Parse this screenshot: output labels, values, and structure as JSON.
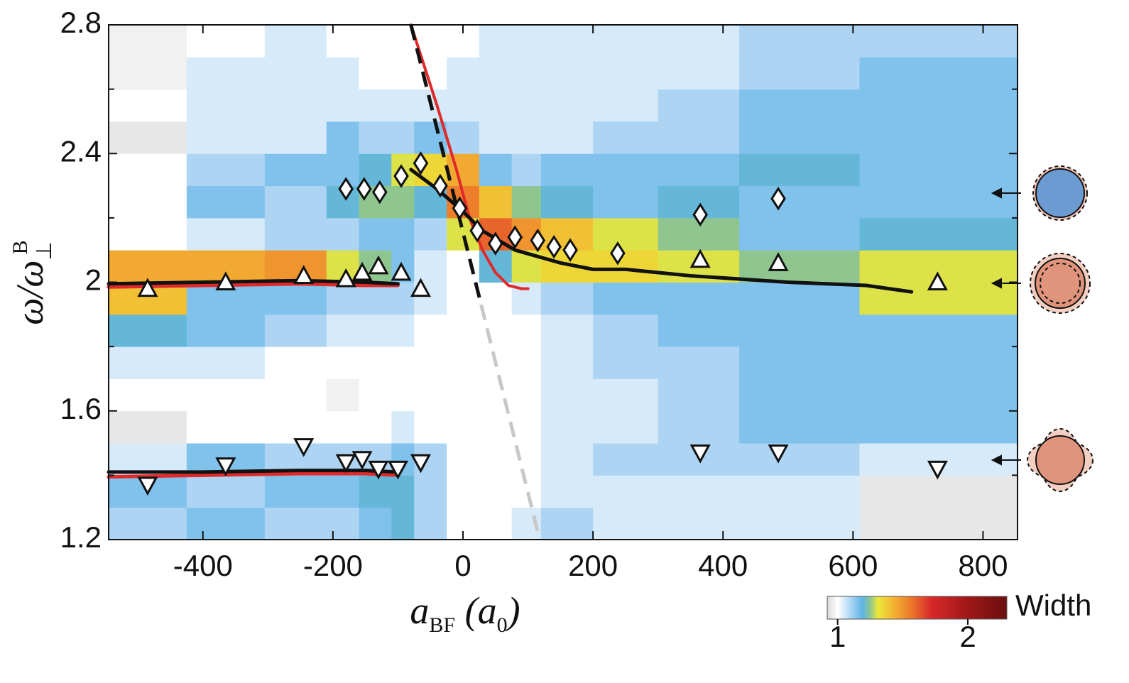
{
  "chart_data": {
    "type": "heatmap",
    "xlabel_parts": [
      {
        "text": "a"
      },
      {
        "text": "BF",
        "sub": true
      },
      {
        "text": " (a"
      },
      {
        "text": "0",
        "sub": true
      },
      {
        "text": ")"
      }
    ],
    "ylabel_parts": [
      {
        "text": "ω/ω"
      },
      {
        "text": "⊥",
        "sub": true
      },
      {
        "text": "B",
        "sup": true
      }
    ],
    "xlim": [
      -545,
      853
    ],
    "ylim": [
      1.2,
      2.8
    ],
    "xticks": [
      -400,
      -200,
      0,
      200,
      400,
      600,
      800
    ],
    "yticks": [
      1.2,
      1.6,
      2,
      2.4,
      2.8
    ],
    "yminor": [
      1.4,
      1.8,
      2.2,
      2.6
    ],
    "heatmap": {
      "xedges": [
        -545,
        -425,
        -305,
        -210,
        -160,
        -110,
        -75,
        -25,
        25,
        75,
        120,
        200,
        300,
        425,
        610,
        853
      ],
      "yedges": [
        1.2,
        1.3,
        1.4,
        1.5,
        1.6,
        1.7,
        1.8,
        1.9,
        2.0,
        2.1,
        2.2,
        2.3,
        2.4,
        2.5,
        2.6,
        2.7,
        2.8
      ],
      "values": [
        [
          1.1,
          1.15,
          1.05,
          0.95,
          1.0,
          1.05,
          1.2,
          1.4,
          1.45,
          1.0,
          1.0,
          1.0,
          0.95,
          1.0,
          0.97,
          0.97
        ],
        [
          1.15,
          1.1,
          1.15,
          1.0,
          1.0,
          1.05,
          1.15,
          1.15,
          1.45,
          1.05,
          1.15,
          1.1,
          1.05,
          1.05,
          1.05,
          1.0
        ],
        [
          1.1,
          1.15,
          1.1,
          1.0,
          1.0,
          1.0,
          1.1,
          1.15,
          1.5,
          1.1,
          1.1,
          1.15,
          1.05,
          1.05,
          1.05,
          1.05
        ],
        [
          1.1,
          1.15,
          1.1,
          1.0,
          0.97,
          1.0,
          1.05,
          1.1,
          1.3,
          1.1,
          1.2,
          1.15,
          1.15,
          1.05,
          1.05,
          1.0
        ],
        [
          1.15,
          1.2,
          1.1,
          1.0,
          1.0,
          1.0,
          1.05,
          1.1,
          1.25,
          1.15,
          1.25,
          1.2,
          1.1,
          1.05,
          1.0,
          1.0
        ],
        [
          1.2,
          1.2,
          1.15,
          1.05,
          1.0,
          1.0,
          1.05,
          1.1,
          1.15,
          1.15,
          1.25,
          1.3,
          1.1,
          1.05,
          1.0,
          1.0
        ],
        [
          1.1,
          1.1,
          1.1,
          1.0,
          1.0,
          1.0,
          1.0,
          1.05,
          1.05,
          1.1,
          1.2,
          1.35,
          1.15,
          1.05,
          1.0,
          1.0
        ],
        [
          1.0,
          1.0,
          1.0,
          1.0,
          1.0,
          1.0,
          1.0,
          1.0,
          1.0,
          1.3,
          1.55,
          1.45,
          1.1,
          1.05,
          1.05,
          1.0
        ],
        [
          1.0,
          1.0,
          1.0,
          1.0,
          1.0,
          1.0,
          1.0,
          1.0,
          1.2,
          1.6,
          1.4,
          1.15,
          1.05,
          1.05,
          1.05,
          1.05
        ],
        [
          1.05,
          1.0,
          1.0,
          1.0,
          1.0,
          1.0,
          1.0,
          1.05,
          1.3,
          1.5,
          1.25,
          1.1,
          1.05,
          1.05,
          1.05,
          1.05
        ],
        [
          1.1,
          1.05,
          1.05,
          1.05,
          1.05,
          1.05,
          1.05,
          1.1,
          1.35,
          1.4,
          1.2,
          1.15,
          1.05,
          1.05,
          1.05,
          1.05
        ],
        [
          1.05,
          1.05,
          1.1,
          1.05,
          1.05,
          1.1,
          1.1,
          1.15,
          1.35,
          1.3,
          1.15,
          1.15,
          1.1,
          1.05,
          1.05,
          1.05
        ],
        [
          1.05,
          1.05,
          1.1,
          1.1,
          1.1,
          1.1,
          1.15,
          1.15,
          1.3,
          1.25,
          1.2,
          1.15,
          1.1,
          1.1,
          1.05,
          1.05
        ],
        [
          1.05,
          1.05,
          1.1,
          1.15,
          1.15,
          1.15,
          1.15,
          1.15,
          1.25,
          1.15,
          1.15,
          1.2,
          1.15,
          1.15,
          1.1,
          1.1
        ],
        [
          0.95,
          0.95,
          1.05,
          1.15,
          1.15,
          1.15,
          1.15,
          1.3,
          1.3,
          1.2,
          1.15,
          1.15,
          1.15,
          1.15,
          1.15,
          1.1
        ]
      ]
    },
    "colormap": [
      {
        "value": 0.92,
        "color": "#d9d9d9"
      },
      {
        "value": 1.0,
        "color": "#ffffff"
      },
      {
        "value": 1.12,
        "color": "#9ccdf0"
      },
      {
        "value": 1.19,
        "color": "#5cb4e6"
      },
      {
        "value": 1.25,
        "color": "#8fc690"
      },
      {
        "value": 1.31,
        "color": "#ece83a"
      },
      {
        "value": 1.43,
        "color": "#f3b232"
      },
      {
        "value": 1.56,
        "color": "#ec7a2a"
      },
      {
        "value": 1.72,
        "color": "#d8282a"
      },
      {
        "value": 2.0,
        "color": "#a01818"
      },
      {
        "value": 2.3,
        "color": "#6a0f0f"
      }
    ],
    "colorbar": {
      "label": "Width",
      "clim": [
        0.92,
        2.3
      ],
      "ticks": [
        1,
        2
      ]
    },
    "lines": [
      {
        "color": "#e02a2a",
        "width": 5,
        "x": [
          -545,
          -400,
          -250,
          -150,
          -100
        ],
        "y": [
          1.985,
          1.99,
          1.995,
          1.99,
          1.99
        ]
      },
      {
        "color": "#111111",
        "width": 5,
        "x": [
          -545,
          -400,
          -250,
          -150,
          -100
        ],
        "y": [
          1.995,
          2.0,
          2.005,
          2.0,
          1.995
        ]
      },
      {
        "color": "#e02a2a",
        "width": 5,
        "x": [
          -545,
          -400,
          -250,
          -150,
          -100
        ],
        "y": [
          1.395,
          1.4,
          1.405,
          1.405,
          1.4
        ]
      },
      {
        "color": "#111111",
        "width": 5,
        "x": [
          -545,
          -400,
          -250,
          -150,
          -100
        ],
        "y": [
          1.41,
          1.41,
          1.415,
          1.415,
          1.41
        ]
      },
      {
        "color": "#e02a2a",
        "width": 4,
        "x": [
          -80,
          -40,
          -10,
          10,
          30,
          50,
          70,
          90,
          100
        ],
        "y": [
          2.8,
          2.55,
          2.35,
          2.2,
          2.1,
          2.03,
          1.99,
          1.98,
          1.98
        ]
      },
      {
        "color": "#111111",
        "width": 5,
        "dash": true,
        "x": [
          -80,
          28
        ],
        "y": [
          2.8,
          1.93
        ]
      },
      {
        "color": "#c8c8c8",
        "width": 5,
        "dash": true,
        "x": [
          28,
          118
        ],
        "y": [
          1.93,
          1.2
        ]
      },
      {
        "color": "#111111",
        "width": 5,
        "x": [
          -80,
          -40,
          0,
          30,
          80,
          150,
          200,
          250,
          350,
          500,
          620,
          690
        ],
        "y": [
          2.35,
          2.29,
          2.22,
          2.16,
          2.1,
          2.06,
          2.04,
          2.04,
          2.02,
          2.0,
          1.99,
          1.97
        ]
      }
    ],
    "markers": [
      {
        "shape": "triangle-up",
        "x": [
          -485,
          -365,
          -245,
          -180,
          -155,
          -130,
          -95,
          -65,
          365,
          485,
          730
        ],
        "y": [
          1.98,
          2.0,
          2.02,
          2.01,
          2.03,
          2.05,
          2.03,
          1.98,
          2.07,
          2.06,
          2.0
        ]
      },
      {
        "shape": "diamond",
        "x": [
          -180,
          -152,
          -128,
          -95,
          -65,
          -35,
          -5,
          22,
          50,
          80,
          115,
          140,
          165,
          238,
          365,
          485
        ],
        "y": [
          2.29,
          2.29,
          2.28,
          2.33,
          2.37,
          2.3,
          2.23,
          2.16,
          2.12,
          2.14,
          2.13,
          2.11,
          2.1,
          2.09,
          2.21,
          2.26
        ]
      },
      {
        "shape": "triangle-down",
        "x": [
          -485,
          -365,
          -245,
          -180,
          -155,
          -130,
          -100,
          -65,
          365,
          485,
          730
        ],
        "y": [
          1.37,
          1.43,
          1.49,
          1.44,
          1.45,
          1.42,
          1.42,
          1.44,
          1.47,
          1.47,
          1.42
        ]
      }
    ]
  }
}
